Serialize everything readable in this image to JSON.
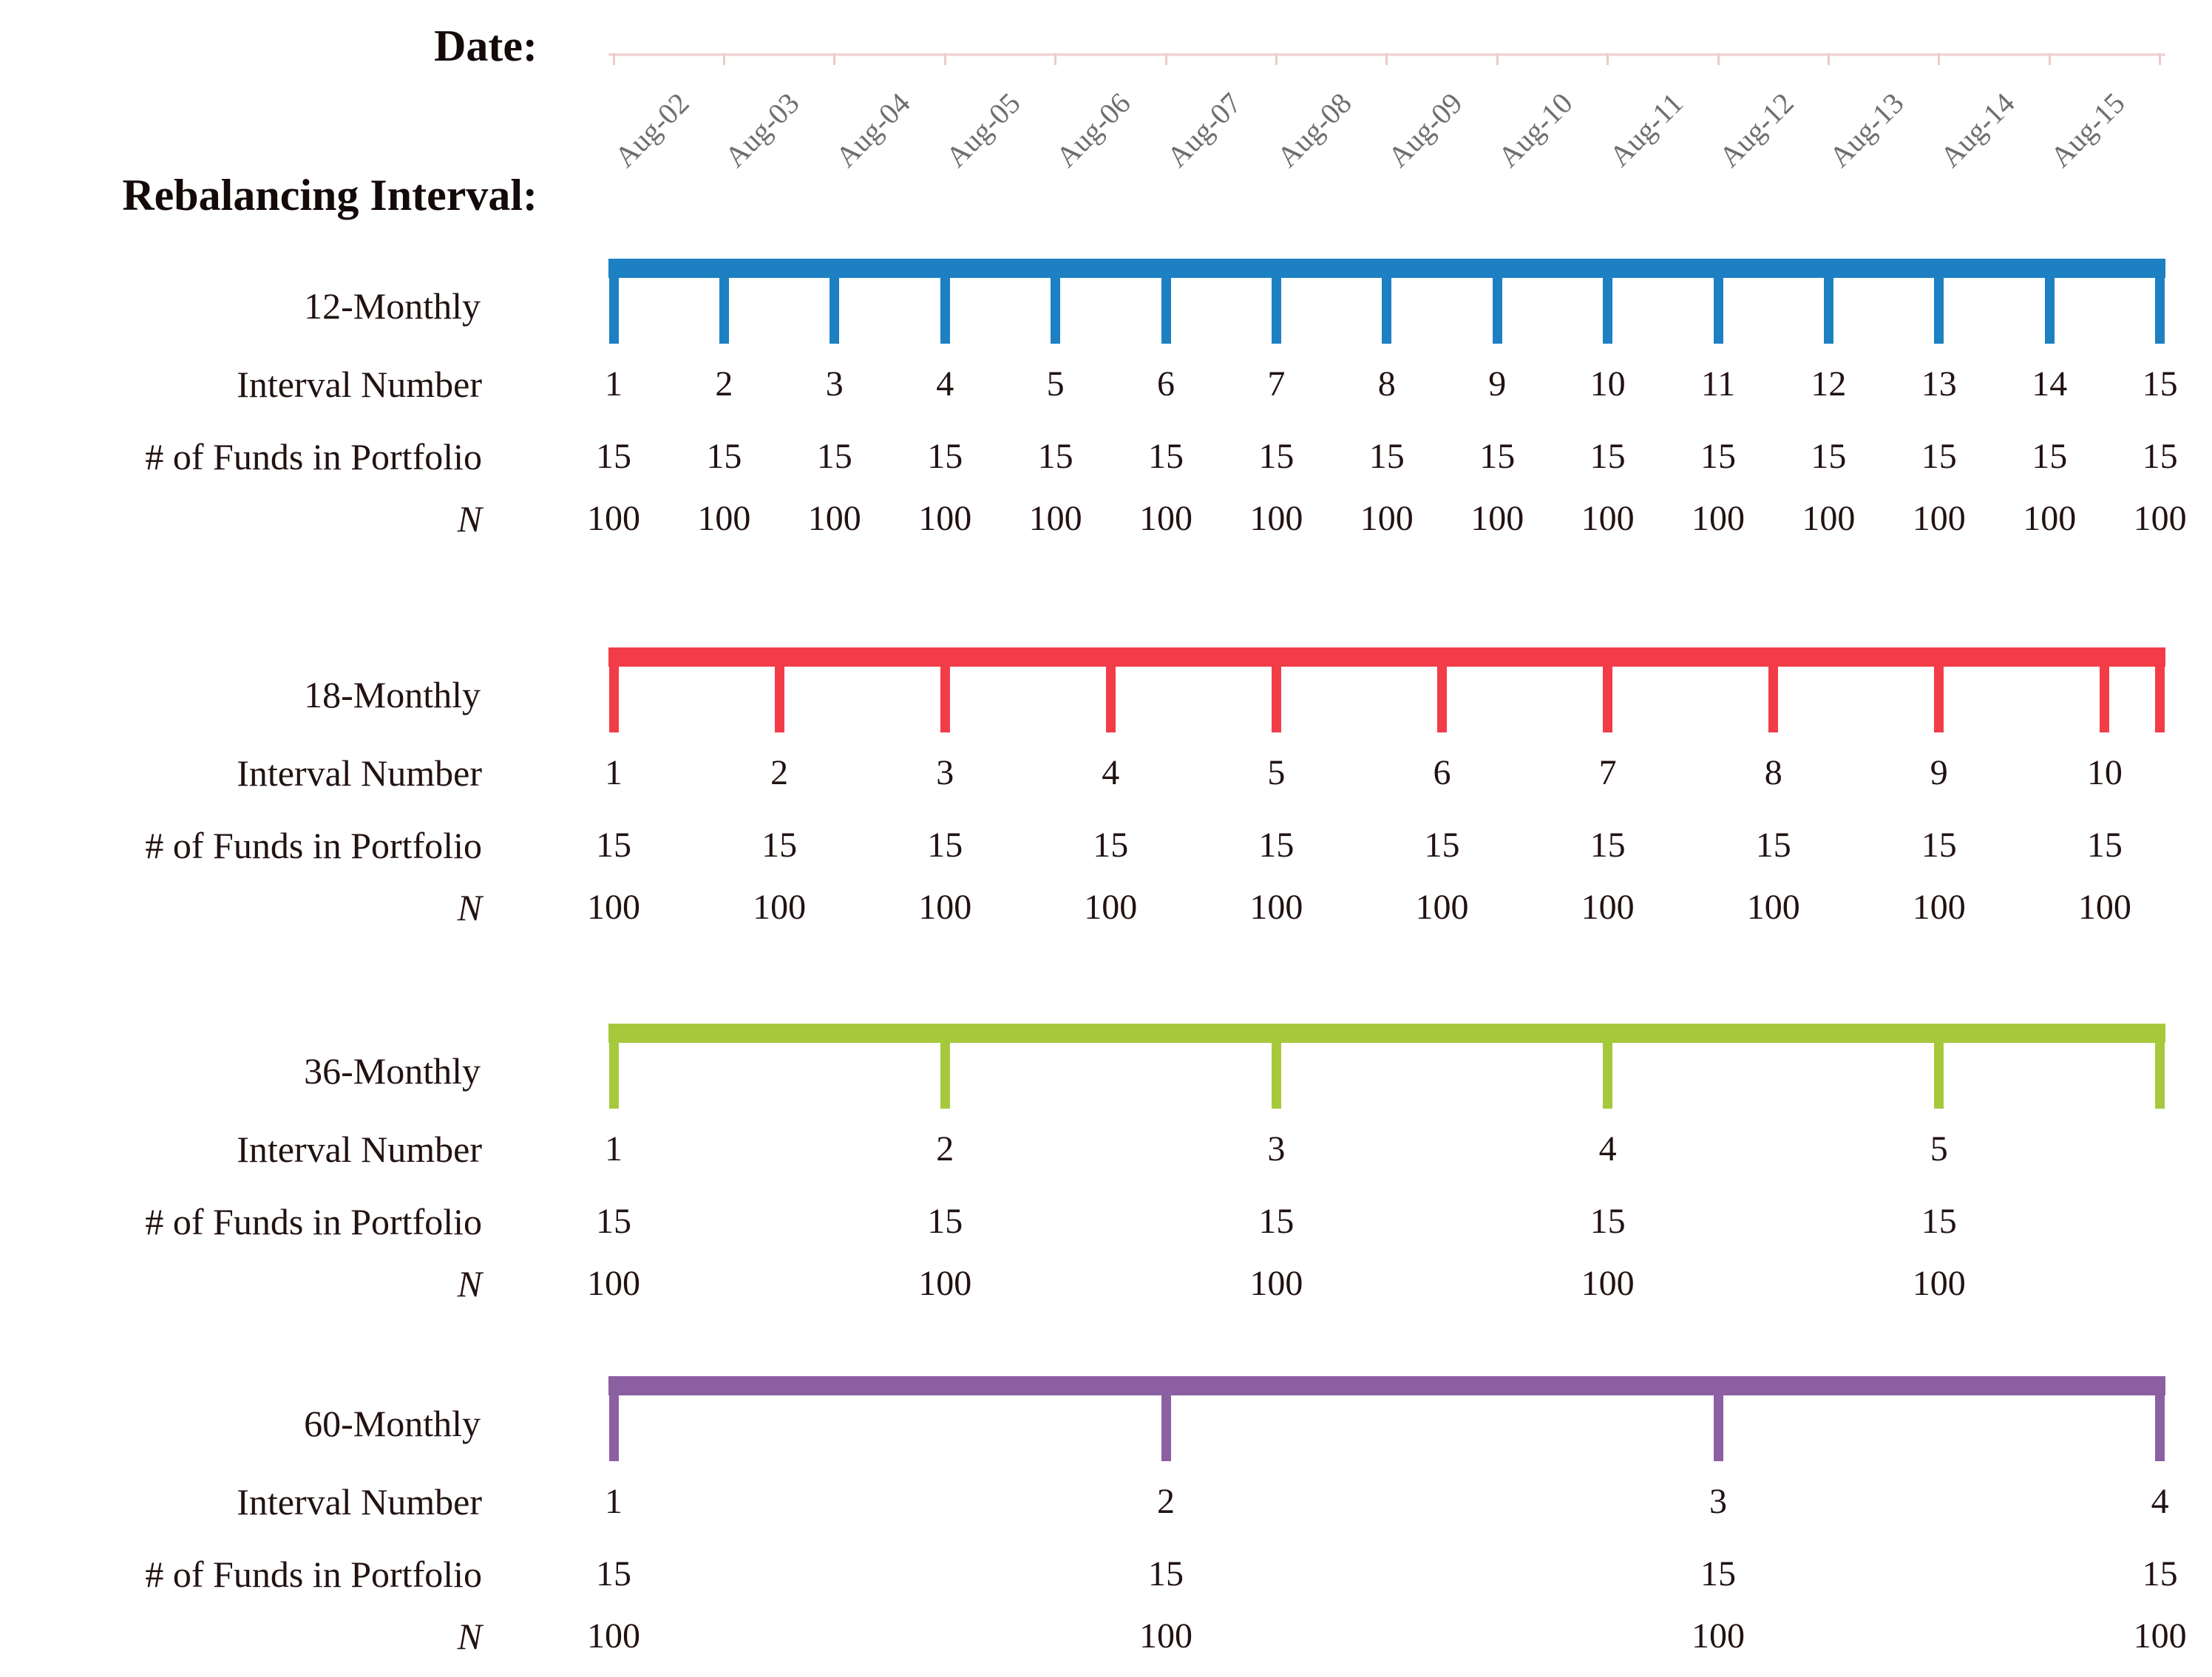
{
  "header": {
    "date_label": "Date:",
    "rebalancing_label": "Rebalancing Interval:"
  },
  "dates": [
    "Aug-02",
    "Aug-03",
    "Aug-04",
    "Aug-05",
    "Aug-06",
    "Aug-07",
    "Aug-08",
    "Aug-09",
    "Aug-10",
    "Aug-11",
    "Aug-12",
    "Aug-13",
    "Aug-14",
    "Aug-15"
  ],
  "row_labels": {
    "interval_number": "Interval Number",
    "funds": "# of Funds in Portfolio",
    "n": "N"
  },
  "colors": {
    "axis_line": "#f2d8d6",
    "axis_tick": "#eccbc9",
    "date_text": "#6e6e6e",
    "text": "#221212"
  },
  "timelines": [
    {
      "label": "12-Monthly",
      "color": "#1c80c2",
      "tick_years": [
        0,
        1,
        2,
        3,
        4,
        5,
        6,
        7,
        8,
        9,
        10,
        11,
        12,
        13,
        14
      ],
      "intervals": [
        {
          "year": 0,
          "number": "1",
          "funds": "15",
          "n": "100"
        },
        {
          "year": 1,
          "number": "2",
          "funds": "15",
          "n": "100"
        },
        {
          "year": 2,
          "number": "3",
          "funds": "15",
          "n": "100"
        },
        {
          "year": 3,
          "number": "4",
          "funds": "15",
          "n": "100"
        },
        {
          "year": 4,
          "number": "5",
          "funds": "15",
          "n": "100"
        },
        {
          "year": 5,
          "number": "6",
          "funds": "15",
          "n": "100"
        },
        {
          "year": 6,
          "number": "7",
          "funds": "15",
          "n": "100"
        },
        {
          "year": 7,
          "number": "8",
          "funds": "15",
          "n": "100"
        },
        {
          "year": 8,
          "number": "9",
          "funds": "15",
          "n": "100"
        },
        {
          "year": 9,
          "number": "10",
          "funds": "15",
          "n": "100"
        },
        {
          "year": 10,
          "number": "11",
          "funds": "15",
          "n": "100"
        },
        {
          "year": 11,
          "number": "12",
          "funds": "15",
          "n": "100"
        },
        {
          "year": 12,
          "number": "13",
          "funds": "15",
          "n": "100"
        },
        {
          "year": 13,
          "number": "14",
          "funds": "15",
          "n": "100"
        },
        {
          "year": 14,
          "number": "15",
          "funds": "15",
          "n": "100"
        }
      ]
    },
    {
      "label": "18-Monthly",
      "color": "#f23d49",
      "tick_years": [
        0,
        1.5,
        3,
        4.5,
        6,
        7.5,
        9,
        10.5,
        12,
        13.5,
        14
      ],
      "intervals": [
        {
          "year": 0,
          "number": "1",
          "funds": "15",
          "n": "100"
        },
        {
          "year": 1.5,
          "number": "2",
          "funds": "15",
          "n": "100"
        },
        {
          "year": 3,
          "number": "3",
          "funds": "15",
          "n": "100"
        },
        {
          "year": 4.5,
          "number": "4",
          "funds": "15",
          "n": "100"
        },
        {
          "year": 6,
          "number": "5",
          "funds": "15",
          "n": "100"
        },
        {
          "year": 7.5,
          "number": "6",
          "funds": "15",
          "n": "100"
        },
        {
          "year": 9,
          "number": "7",
          "funds": "15",
          "n": "100"
        },
        {
          "year": 10.5,
          "number": "8",
          "funds": "15",
          "n": "100"
        },
        {
          "year": 12,
          "number": "9",
          "funds": "15",
          "n": "100"
        },
        {
          "year": 13.5,
          "number": "10",
          "funds": "15",
          "n": "100"
        }
      ]
    },
    {
      "label": "36-Monthly",
      "color": "#a6c93c",
      "tick_years": [
        0,
        3,
        6,
        9,
        12,
        14
      ],
      "intervals": [
        {
          "year": 0,
          "number": "1",
          "funds": "15",
          "n": "100"
        },
        {
          "year": 3,
          "number": "2",
          "funds": "15",
          "n": "100"
        },
        {
          "year": 6,
          "number": "3",
          "funds": "15",
          "n": "100"
        },
        {
          "year": 9,
          "number": "4",
          "funds": "15",
          "n": "100"
        },
        {
          "year": 12,
          "number": "5",
          "funds": "15",
          "n": "100"
        }
      ]
    },
    {
      "label": "60-Monthly",
      "color": "#8c5fa2",
      "tick_years": [
        0,
        5,
        10,
        14
      ],
      "intervals": [
        {
          "year": 0,
          "number": "1",
          "funds": "15",
          "n": "100"
        },
        {
          "year": 5,
          "number": "2",
          "funds": "15",
          "n": "100"
        },
        {
          "year": 10,
          "number": "3",
          "funds": "15",
          "n": "100"
        },
        {
          "year": 14,
          "number": "4",
          "funds": "15",
          "n": "100"
        }
      ]
    }
  ]
}
